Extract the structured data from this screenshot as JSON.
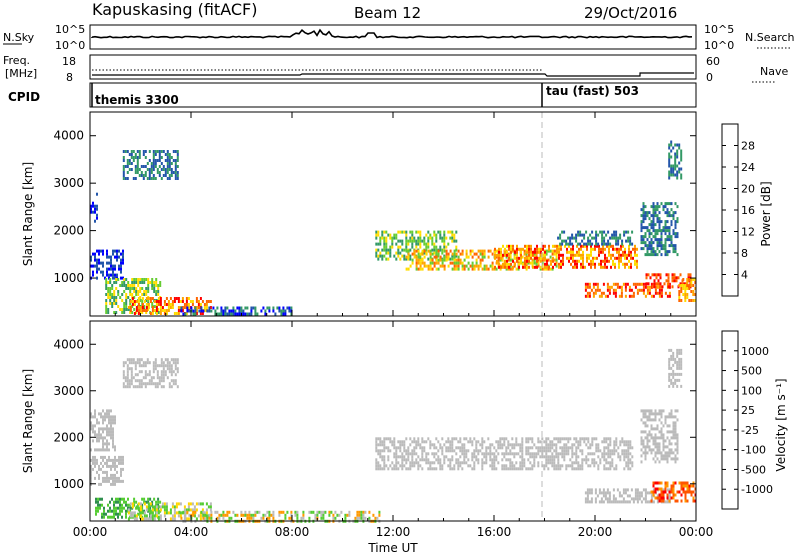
{
  "header": {
    "station": "Kapuskasing (fitACF)",
    "beam": "Beam 12",
    "date": "29/Oct/2016"
  },
  "noise_panel": {
    "left_label": "N.Sky",
    "right_label": "N.Search",
    "left_ticks": [
      "10^5",
      "10^0"
    ],
    "right_ticks": [
      "10^5",
      "10^0"
    ]
  },
  "freq_panel": {
    "left_label_1": "Freq.",
    "left_label_2": "[MHz]",
    "right_label": "Nave",
    "left_ticks": [
      "18",
      "8"
    ],
    "right_ticks": [
      "60",
      "0"
    ]
  },
  "cpid_panel": {
    "label": "CPID",
    "modes": [
      {
        "name": "themis 3300",
        "start_hour": 0
      },
      {
        "name": "tau (fast) 503",
        "start_hour": 18
      }
    ]
  },
  "chart_data": [
    {
      "type": "heatmap",
      "name": "power",
      "ylabel": "Slant Range [km]",
      "xlabel": "Time UT",
      "xlim": [
        0,
        24
      ],
      "ylim": [
        200,
        4500
      ],
      "yticks": [
        {
          "v": 1000,
          "label": "1000"
        },
        {
          "v": 2000,
          "label": "2000"
        },
        {
          "v": 3000,
          "label": "3000"
        },
        {
          "v": 4000,
          "label": "4000"
        }
      ],
      "xticks": [
        {
          "v": 0,
          "label": "00:00"
        },
        {
          "v": 4,
          "label": "04:00"
        },
        {
          "v": 8,
          "label": "08:00"
        },
        {
          "v": 12,
          "label": "12:00"
        },
        {
          "v": 16,
          "label": "16:00"
        },
        {
          "v": 20,
          "label": "20:00"
        },
        {
          "v": 24,
          "label": "00:00"
        }
      ],
      "colorbar": {
        "label": "Power [dB]",
        "ticks": [
          "28",
          "24",
          "20",
          "16",
          "12",
          "8",
          "4"
        ],
        "colors": [
          "#ff0000",
          "#ff6600",
          "#ffa500",
          "#ffdd00",
          "#66cc33",
          "#339966",
          "#2255aa",
          "#0000ff"
        ]
      },
      "regions": [
        {
          "t0": 0.0,
          "t1": 1.3,
          "r0": 1000,
          "r1": 1600,
          "c": [
            6,
            7
          ]
        },
        {
          "t0": 0.6,
          "t1": 2.8,
          "r0": 300,
          "r1": 1000,
          "c": [
            3,
            4,
            5
          ]
        },
        {
          "t0": 1.5,
          "t1": 4.8,
          "r0": 250,
          "r1": 600,
          "c": [
            0,
            1,
            2,
            3
          ]
        },
        {
          "t0": 3.5,
          "t1": 8.0,
          "r0": 220,
          "r1": 400,
          "c": [
            5,
            6,
            7
          ]
        },
        {
          "t0": 1.3,
          "t1": 3.5,
          "r0": 3100,
          "r1": 3700,
          "c": [
            5,
            6
          ]
        },
        {
          "t0": 0.0,
          "t1": 0.3,
          "r0": 2200,
          "r1": 2800,
          "c": [
            6,
            7
          ]
        },
        {
          "t0": 11.3,
          "t1": 14.5,
          "r0": 1400,
          "r1": 2000,
          "c": [
            3,
            4,
            5
          ]
        },
        {
          "t0": 12.5,
          "t1": 18.5,
          "r0": 1200,
          "r1": 1600,
          "c": [
            1,
            2,
            3,
            4
          ]
        },
        {
          "t0": 16.0,
          "t1": 21.7,
          "r0": 1200,
          "r1": 1700,
          "c": [
            0,
            1,
            2,
            3
          ]
        },
        {
          "t0": 18.5,
          "t1": 21.5,
          "r0": 1700,
          "r1": 2000,
          "c": [
            5,
            6
          ]
        },
        {
          "t0": 19.6,
          "t1": 23.0,
          "r0": 600,
          "r1": 900,
          "c": [
            0,
            1,
            2
          ]
        },
        {
          "t0": 22.0,
          "t1": 23.8,
          "r0": 800,
          "r1": 1100,
          "c": [
            0,
            1
          ]
        },
        {
          "t0": 21.8,
          "t1": 23.3,
          "r0": 1500,
          "r1": 2600,
          "c": [
            5,
            6
          ]
        },
        {
          "t0": 22.9,
          "t1": 23.4,
          "r0": 3100,
          "r1": 3900,
          "c": [
            5,
            6
          ]
        },
        {
          "t0": 23.3,
          "t1": 24.0,
          "r0": 500,
          "r1": 1000,
          "c": [
            1,
            2,
            3
          ]
        }
      ]
    },
    {
      "type": "heatmap",
      "name": "velocity",
      "ylabel": "Slant Range [km]",
      "xlabel": "Time UT",
      "xlim": [
        0,
        24
      ],
      "ylim": [
        200,
        4500
      ],
      "yticks": [
        {
          "v": 1000,
          "label": "1000"
        },
        {
          "v": 2000,
          "label": "2000"
        },
        {
          "v": 3000,
          "label": "3000"
        },
        {
          "v": 4000,
          "label": "4000"
        }
      ],
      "xticks": [
        {
          "v": 0,
          "label": "00:00"
        },
        {
          "v": 4,
          "label": "04:00"
        },
        {
          "v": 8,
          "label": "08:00"
        },
        {
          "v": 12,
          "label": "12:00"
        },
        {
          "v": 16,
          "label": "16:00"
        },
        {
          "v": 20,
          "label": "20:00"
        },
        {
          "v": 24,
          "label": "00:00"
        }
      ],
      "colorbar": {
        "label": "Velocity [m s⁻¹]",
        "ticks": [
          "1000",
          "500",
          "100",
          "25",
          "-25",
          "-100",
          "-500",
          "-1000"
        ],
        "colors": [
          "#1f3fbf",
          "#3f6fbf",
          "#2f8f4f",
          "#55cc33",
          "#bbbbbb",
          "#ffd700",
          "#ff9900",
          "#ff5500",
          "#ff0000"
        ]
      },
      "regions": [
        {
          "t0": 0.0,
          "t1": 1.3,
          "r0": 1000,
          "r1": 1600,
          "c": [
            4
          ]
        },
        {
          "t0": 0.0,
          "t1": 1.0,
          "r0": 1700,
          "r1": 2600,
          "c": [
            4
          ]
        },
        {
          "t0": 0.2,
          "t1": 2.8,
          "r0": 300,
          "r1": 700,
          "c": [
            3,
            2
          ]
        },
        {
          "t0": 1.5,
          "t1": 4.8,
          "r0": 250,
          "r1": 600,
          "c": [
            3,
            4,
            5
          ]
        },
        {
          "t0": 3.5,
          "t1": 11.5,
          "r0": 220,
          "r1": 420,
          "c": [
            3,
            4,
            6
          ]
        },
        {
          "t0": 1.3,
          "t1": 3.5,
          "r0": 3100,
          "r1": 3700,
          "c": [
            4
          ]
        },
        {
          "t0": 11.3,
          "t1": 21.5,
          "r0": 1300,
          "r1": 2000,
          "c": [
            4
          ]
        },
        {
          "t0": 19.6,
          "t1": 23.0,
          "r0": 600,
          "r1": 900,
          "c": [
            4
          ]
        },
        {
          "t0": 22.2,
          "t1": 24.0,
          "r0": 650,
          "r1": 1050,
          "c": [
            6,
            7,
            8
          ]
        },
        {
          "t0": 21.8,
          "t1": 23.3,
          "r0": 1500,
          "r1": 2600,
          "c": [
            4
          ]
        },
        {
          "t0": 22.9,
          "t1": 23.4,
          "r0": 3100,
          "r1": 3900,
          "c": [
            4
          ]
        }
      ]
    }
  ]
}
